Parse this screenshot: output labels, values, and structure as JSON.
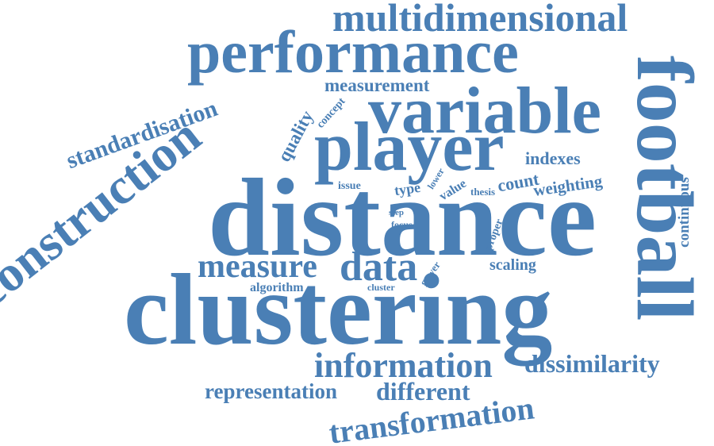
{
  "wordcloud": {
    "color": "#4a7fb5",
    "background": "#ffffff",
    "words": [
      {
        "text": "multidimensional",
        "rank": 1
      },
      {
        "text": "performance",
        "rank": 2
      },
      {
        "text": "measurement",
        "rank": 3
      },
      {
        "text": "variable",
        "rank": 4
      },
      {
        "text": "football",
        "rank": 5
      },
      {
        "text": "construction",
        "rank": 6
      },
      {
        "text": "standardisation",
        "rank": 7
      },
      {
        "text": "quality",
        "rank": 8
      },
      {
        "text": "concept",
        "rank": 9
      },
      {
        "text": "player",
        "rank": 10
      },
      {
        "text": "indexes",
        "rank": 11
      },
      {
        "text": "issue",
        "rank": 12
      },
      {
        "text": "type",
        "rank": 13
      },
      {
        "text": "lower",
        "rank": 14
      },
      {
        "text": "value",
        "rank": 15
      },
      {
        "text": "thesis",
        "rank": 16
      },
      {
        "text": "count",
        "rank": 17
      },
      {
        "text": "weighting",
        "rank": 18
      },
      {
        "text": "distance",
        "rank": 19
      },
      {
        "text": "step",
        "rank": 20
      },
      {
        "text": "focus",
        "rank": 21
      },
      {
        "text": "proper",
        "rank": 22
      },
      {
        "text": "continuous",
        "rank": 23
      },
      {
        "text": "measure",
        "rank": 24
      },
      {
        "text": "data",
        "rank": 25
      },
      {
        "text": "scaling",
        "rank": 26
      },
      {
        "text": "algorithm",
        "rank": 27
      },
      {
        "text": "cluster",
        "rank": 28
      },
      {
        "text": "gower",
        "rank": 29
      },
      {
        "text": "clustering",
        "rank": 30
      },
      {
        "text": "information",
        "rank": 31
      },
      {
        "text": "dissimilarity",
        "rank": 32
      },
      {
        "text": "representation",
        "rank": 33
      },
      {
        "text": "different",
        "rank": 34
      },
      {
        "text": "transformation",
        "rank": 35
      }
    ]
  }
}
